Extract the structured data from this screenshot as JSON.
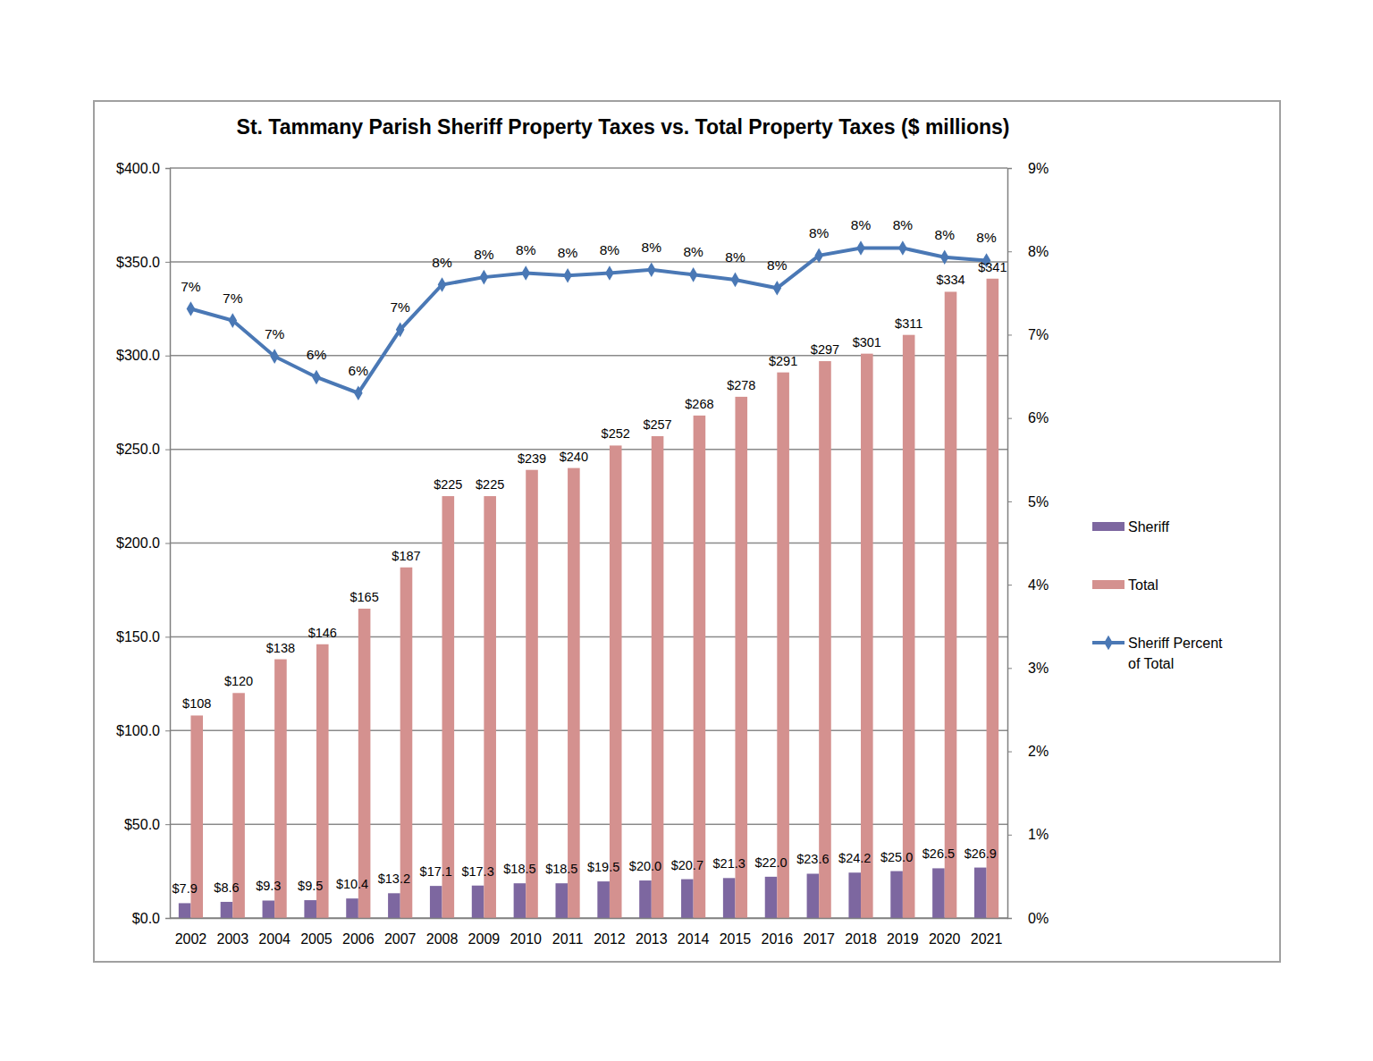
{
  "chart_data": {
    "type": "bar",
    "title": "St. Tammany Parish Sheriff Property Taxes vs. Total Property Taxes ($ millions)",
    "categories": [
      "2002",
      "2003",
      "2004",
      "2005",
      "2006",
      "2007",
      "2008",
      "2009",
      "2010",
      "2011",
      "2012",
      "2013",
      "2014",
      "2015",
      "2016",
      "2017",
      "2018",
      "2019",
      "2020",
      "2021"
    ],
    "series": [
      {
        "name": "Sheriff",
        "type": "bar",
        "color": "#7d67a0",
        "values": [
          7.9,
          8.6,
          9.3,
          9.5,
          10.4,
          13.2,
          17.1,
          17.3,
          18.5,
          18.5,
          19.5,
          20.0,
          20.7,
          21.3,
          22.0,
          23.6,
          24.2,
          25.0,
          26.5,
          26.9
        ],
        "value_labels": [
          "$7.9",
          "$8.6",
          "$9.3",
          "$9.5",
          "$10.4",
          "$13.2",
          "$17.1",
          "$17.3",
          "$18.5",
          "$18.5",
          "$19.5",
          "$20.0",
          "$20.7",
          "$21.3",
          "$22.0",
          "$23.6",
          "$24.2",
          "$25.0",
          "$26.5",
          "$26.9"
        ]
      },
      {
        "name": "Total",
        "type": "bar",
        "color": "#d4918f",
        "values": [
          108,
          120,
          138,
          146,
          165,
          187,
          225,
          225,
          239,
          240,
          252,
          257,
          268,
          278,
          291,
          297,
          301,
          311,
          334,
          341
        ],
        "value_labels": [
          "$108",
          "$120",
          "$138",
          "$146",
          "$165",
          "$187",
          "$225",
          "$225",
          "$239",
          "$240",
          "$252",
          "$257",
          "$268",
          "$278",
          "$291",
          "$297",
          "$301",
          "$311",
          "$334",
          "$341"
        ]
      },
      {
        "name": "Sheriff Percent of Total",
        "type": "line",
        "axis": "y2",
        "color": "#4a78b5",
        "marker": "diamond",
        "values": [
          7.31,
          7.17,
          6.74,
          6.49,
          6.3,
          7.06,
          7.6,
          7.69,
          7.74,
          7.71,
          7.74,
          7.78,
          7.72,
          7.66,
          7.56,
          7.95,
          8.04,
          8.04,
          7.93,
          7.89
        ],
        "value_labels": [
          "7%",
          "7%",
          "7%",
          "6%",
          "6%",
          "7%",
          "8%",
          "8%",
          "8%",
          "8%",
          "8%",
          "8%",
          "8%",
          "8%",
          "8%",
          "8%",
          "8%",
          "8%",
          "8%",
          "8%"
        ]
      }
    ],
    "ylim": [
      0,
      400
    ],
    "yticks": [
      {
        "value": 0,
        "label": "$0.0"
      },
      {
        "value": 50,
        "label": "$50.0"
      },
      {
        "value": 100,
        "label": "$100.0"
      },
      {
        "value": 150,
        "label": "$150.0"
      },
      {
        "value": 200,
        "label": "$200.0"
      },
      {
        "value": 250,
        "label": "$250.0"
      },
      {
        "value": 300,
        "label": "$300.0"
      },
      {
        "value": 350,
        "label": "$350.0"
      },
      {
        "value": 400,
        "label": "$400.0"
      }
    ],
    "y2lim": [
      0,
      9
    ],
    "y2ticks": [
      {
        "value": 0,
        "label": "0%"
      },
      {
        "value": 1,
        "label": "1%"
      },
      {
        "value": 2,
        "label": "2%"
      },
      {
        "value": 3,
        "label": "3%"
      },
      {
        "value": 4,
        "label": "4%"
      },
      {
        "value": 5,
        "label": "5%"
      },
      {
        "value": 6,
        "label": "6%"
      },
      {
        "value": 7,
        "label": "7%"
      },
      {
        "value": 8,
        "label": "8%"
      },
      {
        "value": 9,
        "label": "9%"
      }
    ],
    "grid": true,
    "legend": "right",
    "data_labels": true
  }
}
